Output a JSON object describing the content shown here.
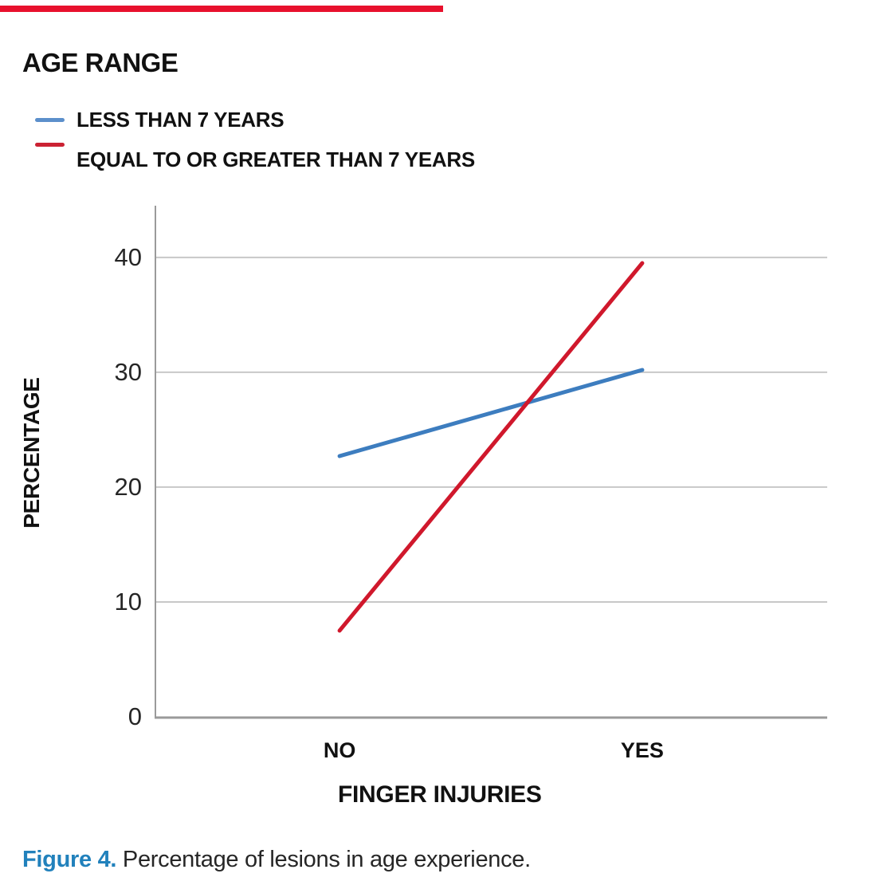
{
  "page": {
    "background": "#ffffff"
  },
  "top_bar": {
    "color": "#e8112d"
  },
  "legend": {
    "title": "AGE RANGE",
    "items": [
      {
        "label": "LESS THAN 7 YEARS",
        "color": "#5c8fcb"
      },
      {
        "label": "EQUAL TO OR GREATER THAN 7 YEARS",
        "color": "#cb2233"
      }
    ]
  },
  "chart_data": {
    "type": "line",
    "categories": [
      "NO",
      "YES"
    ],
    "series": [
      {
        "name": "LESS THAN 7 YEARS",
        "color": "#3d7dbf",
        "values": [
          22.7,
          30.2
        ]
      },
      {
        "name": "EQUAL TO OR GREATER THAN 7 YEARS",
        "color": "#d0182c",
        "values": [
          7.5,
          39.5
        ]
      }
    ],
    "xlabel": "FINGER INJURIES",
    "ylabel": "PERCENTAGE",
    "ylim": [
      0,
      44.5
    ],
    "yticks": [
      0,
      10,
      20,
      30,
      40
    ],
    "grid": "horizontal",
    "gridline_color": "#c8c8c8",
    "axis_color": "#9a9a9a",
    "legend_position": "top-left"
  },
  "caption": {
    "label": "Figure 4.",
    "text": " Percentage of lesions in age experience."
  },
  "caption_label_color": "#2181bc"
}
